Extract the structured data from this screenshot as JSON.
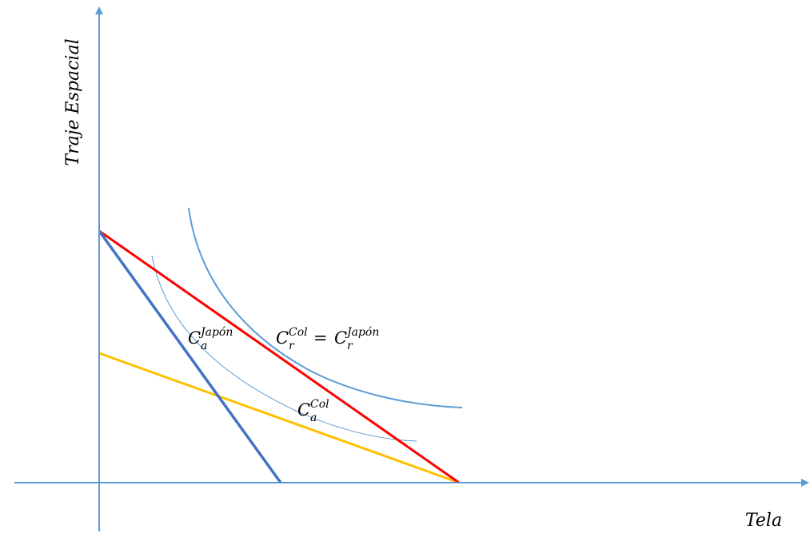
{
  "colors": {
    "axis": "#5B9BD5",
    "autarky_japan_budget": "#4472C4",
    "trade_budget": "#FF0000",
    "autarky_col_budget": "#FFC000",
    "indifference_curve": "#5B9BD5"
  },
  "axes": {
    "y_label": "Traje Espacial",
    "x_label": "Tela"
  },
  "labels": {
    "ca_japon": {
      "base": "C",
      "sup": "Japón",
      "sub": "a"
    },
    "cr_col": {
      "base": "C",
      "sup": "Col",
      "sub": "r"
    },
    "equals": "=",
    "cr_japon": {
      "base": "C",
      "sup": "Japón",
      "sub": "r"
    },
    "ca_col": {
      "base": "C",
      "sup": "Col",
      "sub": "a"
    }
  }
}
